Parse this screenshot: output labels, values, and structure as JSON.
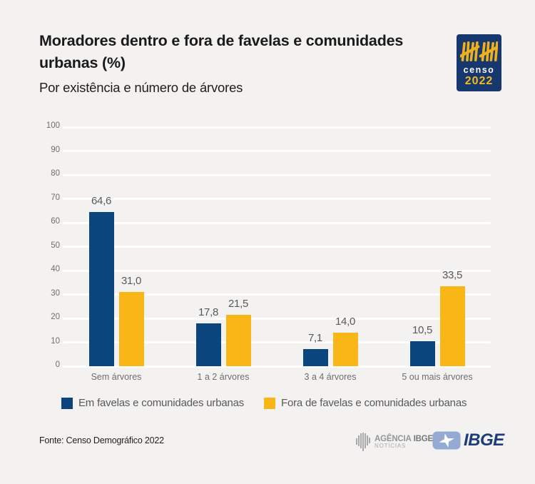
{
  "header": {
    "title": "Moradores dentro e fora de favelas e comunidades urbanas (%)",
    "subtitle": "Por existência e número de árvores"
  },
  "censo_logo": {
    "word": "censo",
    "year": "2022",
    "bg_color": "#16386e",
    "tally_color": "#eeb01c"
  },
  "chart_data": {
    "type": "bar",
    "categories": [
      "Sem árvores",
      "1 a 2 árvores",
      "3 a 4 árvores",
      "5 ou mais árvores"
    ],
    "series": [
      {
        "name": "Em favelas e comunidades urbanas",
        "color": "#0a457e",
        "values": [
          64.6,
          17.8,
          7.1,
          10.5
        ],
        "labels": [
          "64,6",
          "17,8",
          "7,1",
          "10,5"
        ]
      },
      {
        "name": "Fora de favelas e comunidades urbanas",
        "color": "#f9b617",
        "values": [
          31.0,
          21.5,
          14.0,
          33.5
        ],
        "labels": [
          "31,0",
          "21,5",
          "14,0",
          "33,5"
        ]
      }
    ],
    "title": "Moradores dentro e fora de favelas e comunidades urbanas (%)",
    "xlabel": "",
    "ylabel": "",
    "ylim": [
      0,
      100
    ],
    "yticks": [
      0,
      10,
      20,
      30,
      40,
      50,
      60,
      70,
      80,
      90,
      100
    ],
    "grid": true,
    "gridline_color": "#ffffff",
    "legend_position": "bottom"
  },
  "footer": {
    "source": "Fonte: Censo Demográfico 2022",
    "agencia_word1": "AGÊNCIA",
    "agencia_word2": "IBGE",
    "agencia_line2": "NOTÍCIAS",
    "ibge": "IBGE"
  }
}
